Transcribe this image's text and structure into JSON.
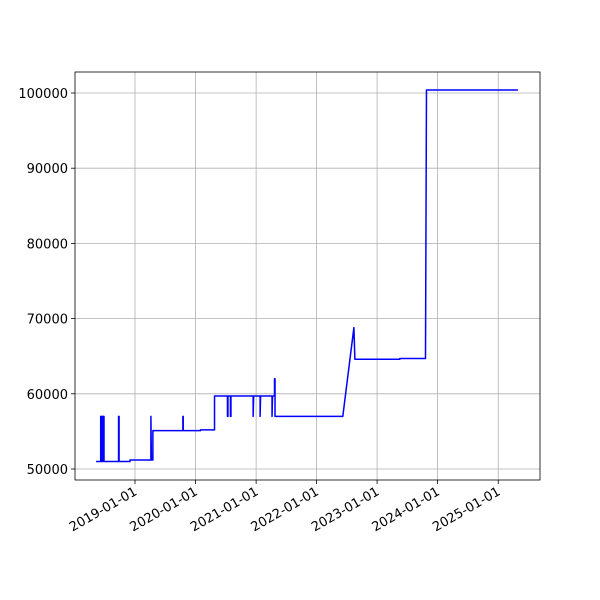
{
  "chart_data": {
    "type": "line",
    "x": [
      "2018-05-11",
      "2018-06-08",
      "2018-06-08",
      "2018-06-14",
      "2018-06-14",
      "2018-06-20",
      "2018-06-20",
      "2018-06-28",
      "2018-06-28",
      "2018-09-24",
      "2018-09-24",
      "2018-09-27",
      "2018-09-27",
      "2018-12-02",
      "2018-12-02",
      "2019-04-07",
      "2019-04-07",
      "2019-04-10",
      "2019-04-19",
      "2019-04-19",
      "2019-10-17",
      "2019-10-17",
      "2019-10-19",
      "2019-10-19",
      "2020-01-31",
      "2020-01-31",
      "2020-04-25",
      "2020-04-25",
      "2020-07-12",
      "2020-07-12",
      "2020-07-15",
      "2020-07-15",
      "2020-07-30",
      "2020-07-30",
      "2020-08-02",
      "2020-08-02",
      "2020-12-14",
      "2020-12-14",
      "2020-12-17",
      "2021-01-25",
      "2021-01-25",
      "2021-01-28",
      "2021-04-07",
      "2021-04-07",
      "2021-04-10",
      "2021-04-22",
      "2021-04-22",
      "2021-04-25",
      "2021-04-25",
      "2022-06-08",
      "2022-08-14",
      "2022-08-20",
      "2023-05-18",
      "2023-05-18",
      "2023-10-20",
      "2023-10-26",
      "2025-04-30"
    ],
    "values": [
      51000,
      51000,
      57000,
      57000,
      51000,
      51000,
      57000,
      57000,
      51000,
      51000,
      57000,
      57000,
      51000,
      51000,
      51200,
      51200,
      57000,
      51200,
      51200,
      55100,
      55100,
      57000,
      57000,
      55100,
      55100,
      55200,
      55200,
      59700,
      59700,
      57000,
      57000,
      59700,
      59700,
      57000,
      57000,
      59700,
      59700,
      57000,
      59700,
      59700,
      57000,
      59700,
      59700,
      57000,
      59700,
      59700,
      62000,
      62000,
      57000,
      57000,
      68800,
      64600,
      64600,
      64700,
      64700,
      100400,
      100400
    ],
    "color": "#0000ff",
    "xlim": [
      "2018-01-04",
      "2025-09-10"
    ],
    "xticks": [
      "2019-01-01",
      "2020-01-01",
      "2021-01-01",
      "2022-01-01",
      "2023-01-01",
      "2024-01-01",
      "2025-01-01"
    ],
    "ylim": [
      48537,
      102793
    ],
    "yticks": [
      50000,
      60000,
      70000,
      80000,
      90000,
      100000
    ],
    "grid": true
  }
}
